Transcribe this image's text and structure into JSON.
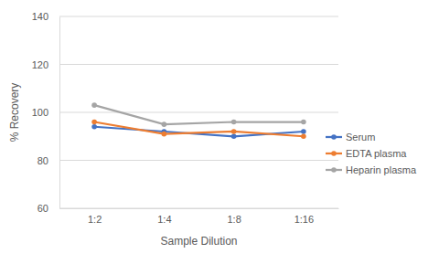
{
  "chart_data": {
    "type": "line",
    "x_label": "Sample Dilution",
    "y_label": "% Recovery",
    "categories": [
      "1:2",
      "1:4",
      "1:8",
      "1:16"
    ],
    "series": [
      {
        "name": "Serum",
        "color": "#4472c4",
        "marker": "circle",
        "values": [
          94,
          92,
          90,
          92
        ]
      },
      {
        "name": "EDTA plasma",
        "color": "#ed7d31",
        "marker": "circle",
        "values": [
          96,
          91,
          92,
          90
        ]
      },
      {
        "name": "Heparin plasma",
        "color": "#a5a5a5",
        "marker": "circle",
        "values": [
          103,
          95,
          96,
          96
        ]
      }
    ],
    "ylim": [
      60,
      140
    ],
    "yticks": [
      60,
      80,
      100,
      120,
      140
    ],
    "grid": true,
    "legend": "right"
  }
}
